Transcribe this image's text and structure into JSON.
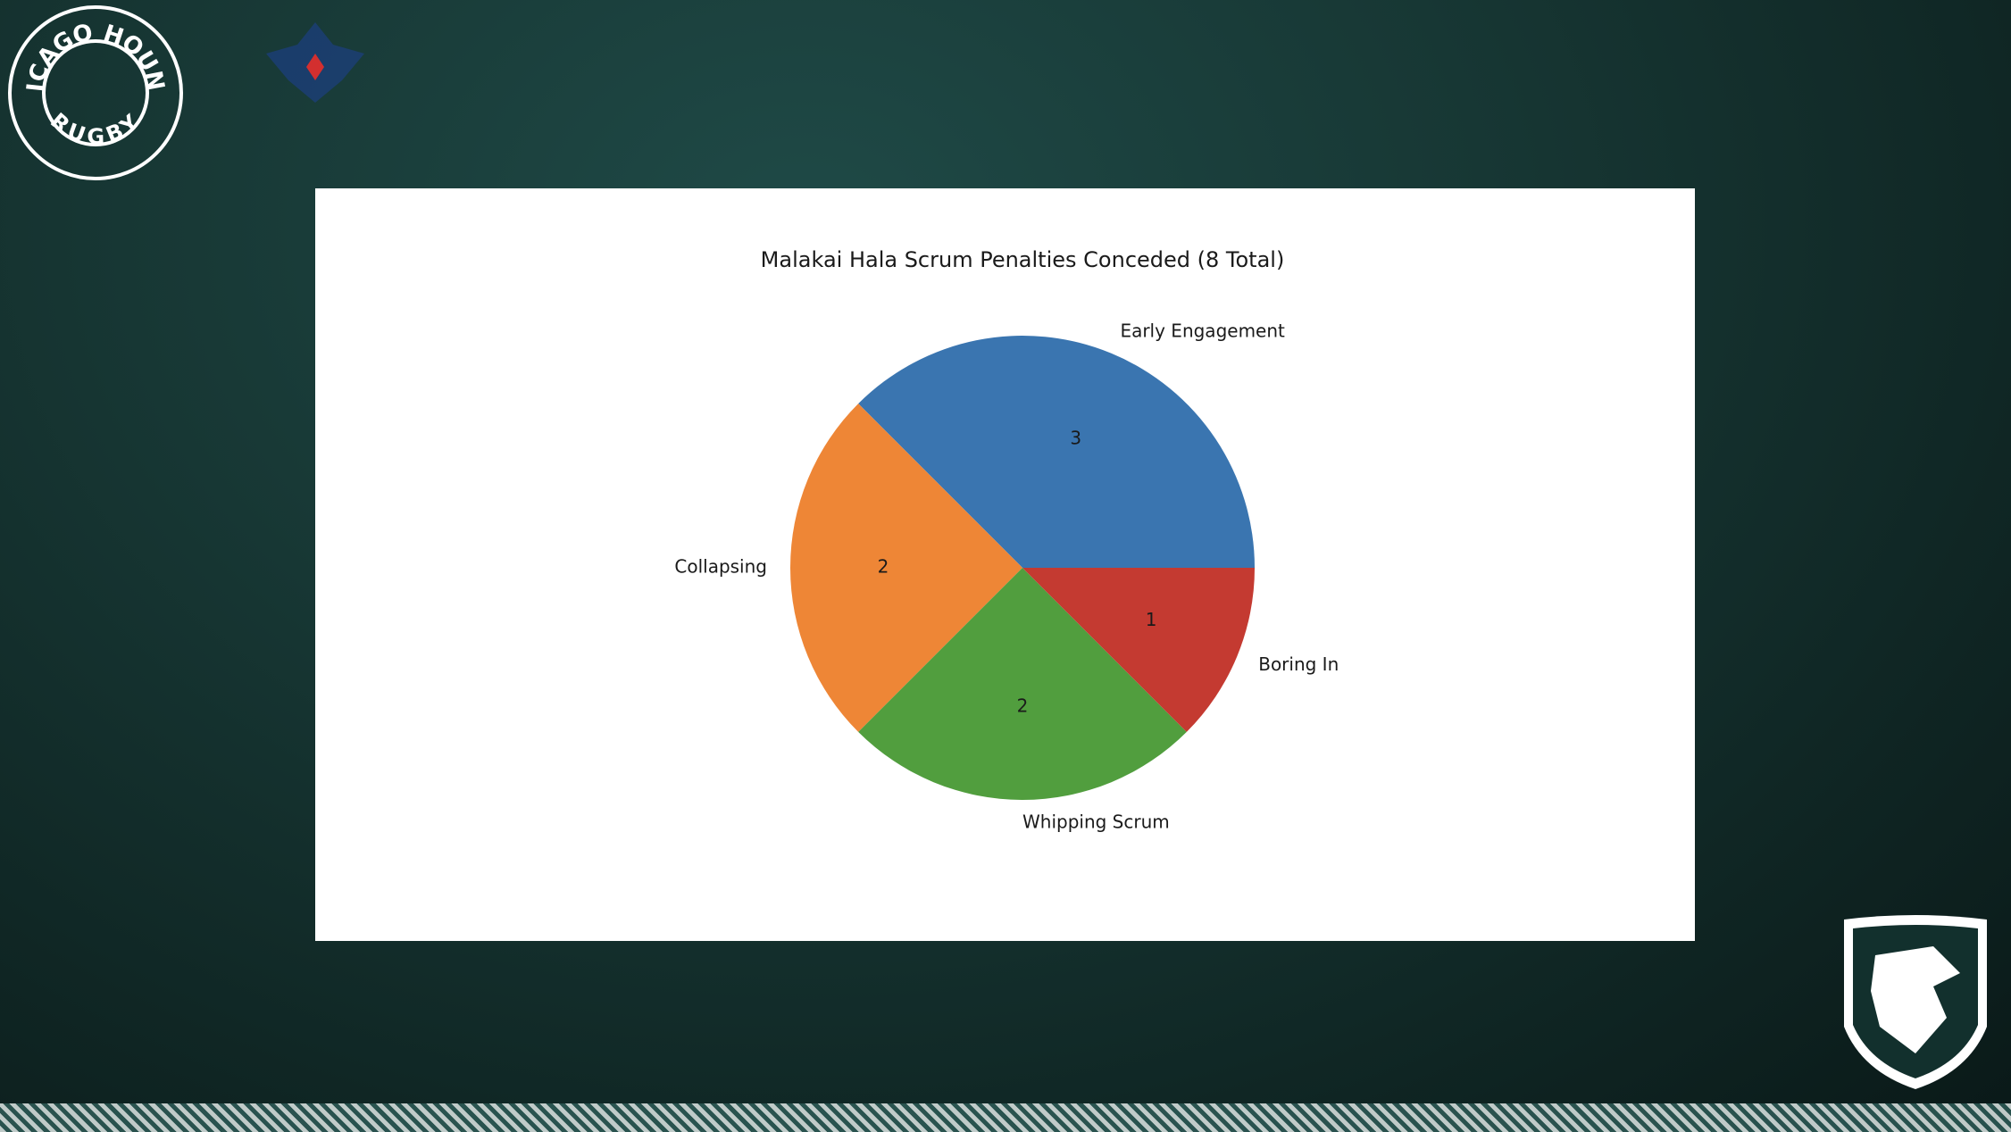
{
  "chart_data": {
    "type": "pie",
    "title": "Malakai Hala Scrum Penalties Conceded (8 Total)",
    "categories": [
      "Early Engagement",
      "Collapsing",
      "Whipping Scrum",
      "Boring In"
    ],
    "values": [
      3,
      2,
      2,
      1
    ],
    "colors": [
      "#3a75b0",
      "#ee8636",
      "#519e3e",
      "#c43a31"
    ]
  },
  "logo": {
    "top": "CHICAGO HOUNDS",
    "bottom": "RUGBY"
  }
}
